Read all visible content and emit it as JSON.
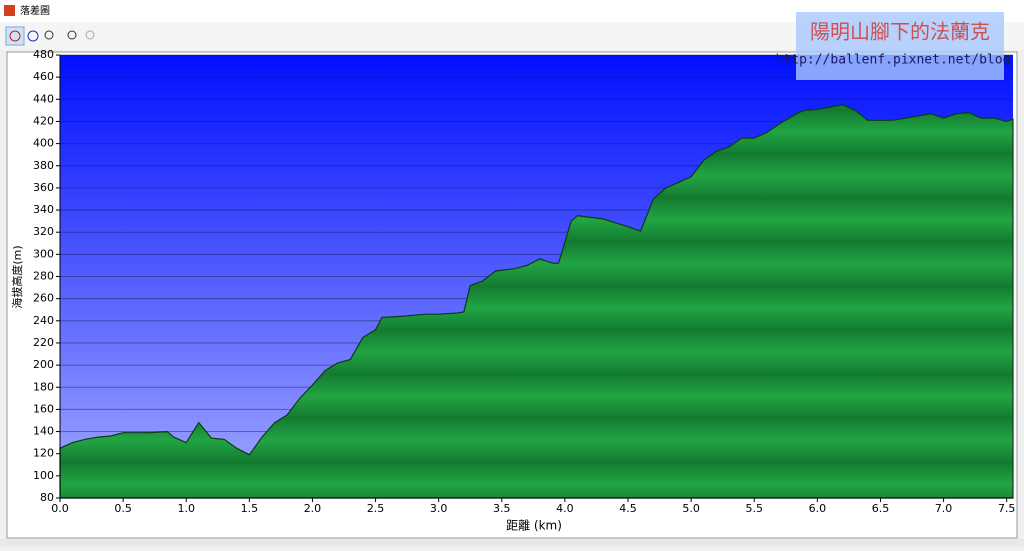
{
  "window": {
    "title": "落差圖"
  },
  "watermark": {
    "title": "陽明山腳下的法蘭克",
    "url": "http://ballenf.pixnet.net/blog"
  },
  "chart_data": {
    "type": "area",
    "x_label": "距離 (km)",
    "y_label": "海拔高度(m)",
    "x": [
      0,
      0.1,
      0.2,
      0.3,
      0.4,
      0.5,
      0.6,
      0.7,
      0.85,
      0.9,
      1.0,
      1.1,
      1.2,
      1.3,
      1.4,
      1.5,
      1.6,
      1.7,
      1.8,
      1.9,
      2.0,
      2.1,
      2.2,
      2.3,
      2.4,
      2.5,
      2.55,
      2.7,
      2.9,
      3.0,
      3.15,
      3.2,
      3.25,
      3.35,
      3.45,
      3.6,
      3.7,
      3.8,
      3.9,
      3.95,
      4.05,
      4.1,
      4.3,
      4.5,
      4.6,
      4.7,
      4.8,
      4.9,
      5.0,
      5.1,
      5.2,
      5.3,
      5.4,
      5.5,
      5.6,
      5.7,
      5.85,
      5.9,
      6.0,
      6.1,
      6.2,
      6.3,
      6.4,
      6.6,
      6.8,
      6.9,
      7.0,
      7.1,
      7.2,
      7.3,
      7.4,
      7.5,
      7.55
    ],
    "series": [
      {
        "color": "#22a544",
        "values": [
          125,
          130,
          133,
          135,
          136,
          139,
          139,
          139,
          140,
          135,
          130,
          148,
          134,
          133,
          125,
          119,
          135,
          148,
          155,
          170,
          182,
          195,
          202,
          205,
          225,
          232,
          243,
          244,
          246,
          246,
          247,
          248,
          272,
          276,
          285,
          287,
          290,
          296,
          292,
          292,
          330,
          335,
          332,
          325,
          321,
          350,
          360,
          365,
          370,
          385,
          393,
          397,
          405,
          405,
          410,
          418,
          428,
          430,
          431,
          433,
          435,
          430,
          421,
          421,
          425,
          427,
          423,
          427,
          428,
          423,
          423,
          420,
          422
        ]
      }
    ],
    "xlim": [
      0,
      7.55
    ],
    "ylim": [
      80,
      480
    ],
    "xticks": [
      {
        "value": 0,
        "label": "0.0"
      },
      0.5,
      {
        "value": 1,
        "label": "1.0"
      },
      1.5,
      {
        "value": 2,
        "label": "2.0"
      },
      2.5,
      {
        "value": 3,
        "label": "3.0"
      },
      3.5,
      {
        "value": 4,
        "label": "4.0"
      },
      4.5,
      {
        "value": 5,
        "label": "5.0"
      },
      5.5,
      {
        "value": 6,
        "label": "6.0"
      },
      6.5,
      {
        "value": 7,
        "label": "7.0"
      },
      7.5
    ],
    "yticks": [
      80,
      100,
      120,
      140,
      160,
      180,
      200,
      220,
      240,
      260,
      280,
      300,
      320,
      340,
      360,
      380,
      400,
      420,
      440,
      460,
      480
    ],
    "grid": true
  }
}
